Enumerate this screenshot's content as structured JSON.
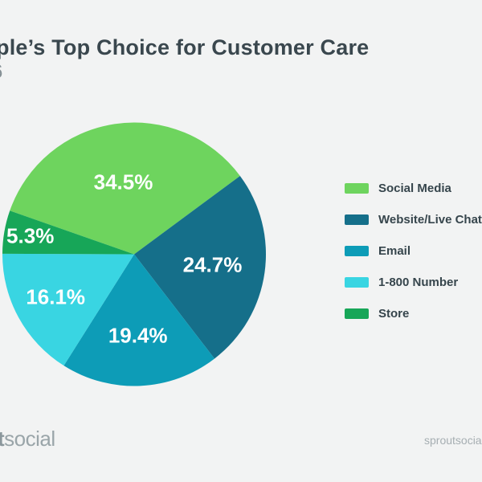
{
  "page": {
    "background": "#f2f3f3"
  },
  "header": {
    "title_visible": "ple’s Top Choice for Customer Care",
    "subtitle_visible": "6"
  },
  "chart_data": {
    "type": "pie",
    "title": "ple’s Top Choice for Customer Care",
    "legend_position": "right",
    "direction": "clockwise",
    "start_angle_deg": 160.7,
    "label_color": "#ffffff",
    "slices": [
      {
        "label": "Social Media",
        "value": 34.5,
        "display": "34.5%",
        "color": "#6ed45e",
        "label_radius": 0.55
      },
      {
        "label": "Website/Live Chat",
        "value": 24.7,
        "display": "24.7%",
        "color": "#156f8a",
        "label_radius": 0.6
      },
      {
        "label": "Email",
        "value": 19.4,
        "display": "19.4%",
        "color": "#0d9cb7",
        "label_radius": 0.62
      },
      {
        "label": "1-800 Number",
        "value": 16.1,
        "display": "16.1%",
        "color": "#39d5e2",
        "label_radius": 0.68
      },
      {
        "label": "Store",
        "value": 5.3,
        "display": "5.3%",
        "color": "#17a658",
        "label_radius": 0.8
      }
    ]
  },
  "footer": {
    "logo_bold_visible": "t",
    "logo_light": "social",
    "website_visible": "sproutsocial"
  }
}
